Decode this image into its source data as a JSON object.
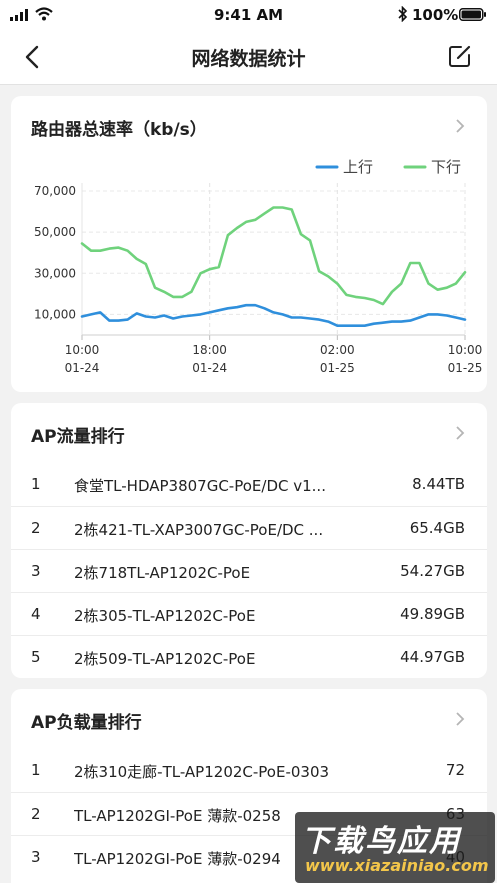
{
  "status_bar": {
    "time": "9:41 AM",
    "battery": "100%"
  },
  "nav": {
    "title": "网络数据统计"
  },
  "speed_card": {
    "title": "路由器总速率（kb/s）"
  },
  "chart_data": {
    "type": "line",
    "title": "路由器总速率（kb/s）",
    "legend_position": "top-right",
    "grid": true,
    "ylim": [
      0,
      70000
    ],
    "yticks": [
      "70,000",
      "50,000",
      "30,000",
      "10,000"
    ],
    "xticks": [
      {
        "time": "10:00",
        "date": "01-24"
      },
      {
        "time": "18:00",
        "date": "01-24"
      },
      {
        "time": "02:00",
        "date": "01-25"
      },
      {
        "time": "10:00",
        "date": "01-25"
      }
    ],
    "series": [
      {
        "name": "上行",
        "color": "#2f8fdc",
        "values": [
          9000,
          10000,
          11000,
          7000,
          7000,
          7500,
          10500,
          9000,
          8500,
          9500,
          8000,
          9000,
          9500,
          10000,
          11000,
          12000,
          13000,
          13500,
          14500,
          14500,
          13000,
          11000,
          10000,
          8500,
          8500,
          8000,
          7500,
          6500,
          4500,
          4500,
          4500,
          4500,
          5500,
          6000,
          6500,
          6500,
          7000,
          8500,
          10000,
          10000,
          9500,
          8500,
          7500
        ]
      },
      {
        "name": "下行",
        "color": "#6fd27c",
        "values": [
          44500,
          41000,
          41000,
          42000,
          42500,
          41000,
          37000,
          34500,
          23000,
          21000,
          18500,
          18500,
          21000,
          30000,
          32000,
          33000,
          48500,
          52000,
          55000,
          56000,
          59000,
          62000,
          62000,
          61000,
          49000,
          46000,
          31000,
          28500,
          25000,
          19500,
          18500,
          18000,
          17000,
          15000,
          21000,
          25000,
          35000,
          35000,
          25000,
          22000,
          23000,
          25000,
          30500
        ]
      }
    ]
  },
  "ap_traffic": {
    "title": "AP流量排行",
    "rows": [
      {
        "rank": "1",
        "name": "食堂TL-HDAP3807GC-PoE/DC v1...",
        "value": "8.44TB"
      },
      {
        "rank": "2",
        "name": "2栋421-TL-XAP3007GC-PoE/DC ...",
        "value": "65.4GB"
      },
      {
        "rank": "3",
        "name": "2栋718TL-AP1202C-PoE",
        "value": "54.27GB"
      },
      {
        "rank": "4",
        "name": "2栋305-TL-AP1202C-PoE",
        "value": "49.89GB"
      },
      {
        "rank": "5",
        "name": "2栋509-TL-AP1202C-PoE",
        "value": "44.97GB"
      }
    ]
  },
  "ap_load": {
    "title": "AP负载量排行",
    "rows": [
      {
        "rank": "1",
        "name": "2栋310走廊-TL-AP1202C-PoE-0303",
        "value": "72"
      },
      {
        "rank": "2",
        "name": "TL-AP1202GI-PoE 薄款-0258",
        "value": "63"
      },
      {
        "rank": "3",
        "name": "TL-AP1202GI-PoE 薄款-0294",
        "value": "40"
      }
    ]
  },
  "watermark": {
    "main": "下载鸟应用",
    "sub": "www.xiazainiao.com"
  }
}
